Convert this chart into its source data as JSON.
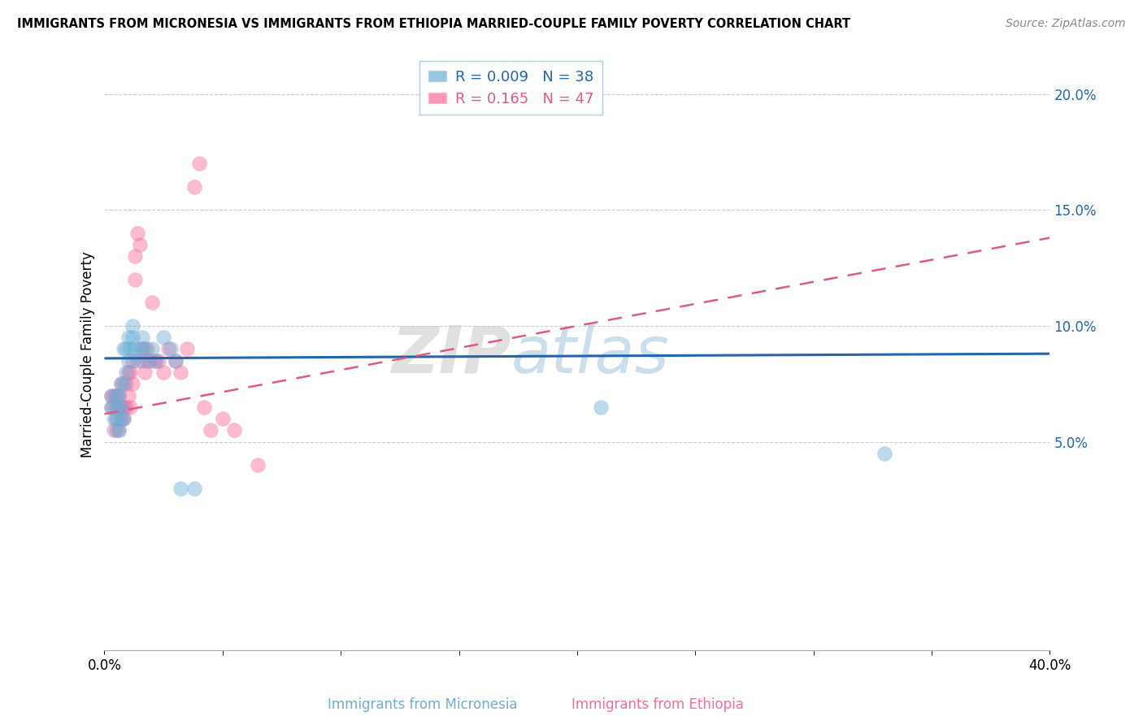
{
  "title": "IMMIGRANTS FROM MICRONESIA VS IMMIGRANTS FROM ETHIOPIA MARRIED-COUPLE FAMILY POVERTY CORRELATION CHART",
  "source": "Source: ZipAtlas.com",
  "ylabel": "Married-Couple Family Poverty",
  "xlabel_micronesia": "Immigrants from Micronesia",
  "xlabel_ethiopia": "Immigrants from Ethiopia",
  "xlim": [
    0.0,
    0.4
  ],
  "ylim": [
    -0.04,
    0.215
  ],
  "yticks": [
    0.05,
    0.1,
    0.15,
    0.2
  ],
  "ytick_labels": [
    "5.0%",
    "10.0%",
    "15.0%",
    "20.0%"
  ],
  "color_micronesia": "#6baed6",
  "color_ethiopia": "#fb6a9c",
  "R_micronesia": 0.009,
  "N_micronesia": 38,
  "R_ethiopia": 0.165,
  "N_ethiopia": 47,
  "watermark": "ZIPatlas",
  "mic_line_y0": 0.086,
  "mic_line_y1": 0.088,
  "eth_line_y0": 0.062,
  "eth_line_y1": 0.138,
  "micronesia_x": [
    0.003,
    0.003,
    0.004,
    0.004,
    0.005,
    0.005,
    0.005,
    0.006,
    0.006,
    0.006,
    0.007,
    0.007,
    0.007,
    0.008,
    0.008,
    0.008,
    0.009,
    0.009,
    0.01,
    0.01,
    0.011,
    0.012,
    0.012,
    0.013,
    0.014,
    0.015,
    0.016,
    0.017,
    0.018,
    0.02,
    0.022,
    0.025,
    0.028,
    0.03,
    0.032,
    0.038,
    0.21,
    0.33
  ],
  "micronesia_y": [
    0.065,
    0.07,
    0.06,
    0.065,
    0.055,
    0.06,
    0.07,
    0.055,
    0.065,
    0.07,
    0.06,
    0.065,
    0.075,
    0.06,
    0.075,
    0.09,
    0.08,
    0.09,
    0.085,
    0.095,
    0.09,
    0.095,
    0.1,
    0.09,
    0.085,
    0.09,
    0.095,
    0.09,
    0.085,
    0.09,
    0.085,
    0.095,
    0.09,
    0.085,
    0.03,
    0.03,
    0.065,
    0.045
  ],
  "ethiopia_x": [
    0.003,
    0.003,
    0.004,
    0.004,
    0.005,
    0.005,
    0.005,
    0.006,
    0.006,
    0.006,
    0.007,
    0.007,
    0.007,
    0.008,
    0.008,
    0.009,
    0.009,
    0.01,
    0.01,
    0.011,
    0.011,
    0.012,
    0.012,
    0.013,
    0.013,
    0.014,
    0.015,
    0.016,
    0.016,
    0.017,
    0.018,
    0.019,
    0.02,
    0.021,
    0.023,
    0.025,
    0.027,
    0.03,
    0.032,
    0.035,
    0.038,
    0.04,
    0.042,
    0.045,
    0.05,
    0.055,
    0.065
  ],
  "ethiopia_y": [
    0.065,
    0.07,
    0.055,
    0.07,
    0.06,
    0.065,
    0.07,
    0.055,
    0.065,
    0.07,
    0.06,
    0.065,
    0.075,
    0.06,
    0.065,
    0.065,
    0.075,
    0.07,
    0.08,
    0.065,
    0.08,
    0.075,
    0.085,
    0.12,
    0.13,
    0.14,
    0.135,
    0.085,
    0.09,
    0.08,
    0.09,
    0.085,
    0.11,
    0.085,
    0.085,
    0.08,
    0.09,
    0.085,
    0.08,
    0.09,
    0.16,
    0.17,
    0.065,
    0.055,
    0.06,
    0.055,
    0.04
  ]
}
